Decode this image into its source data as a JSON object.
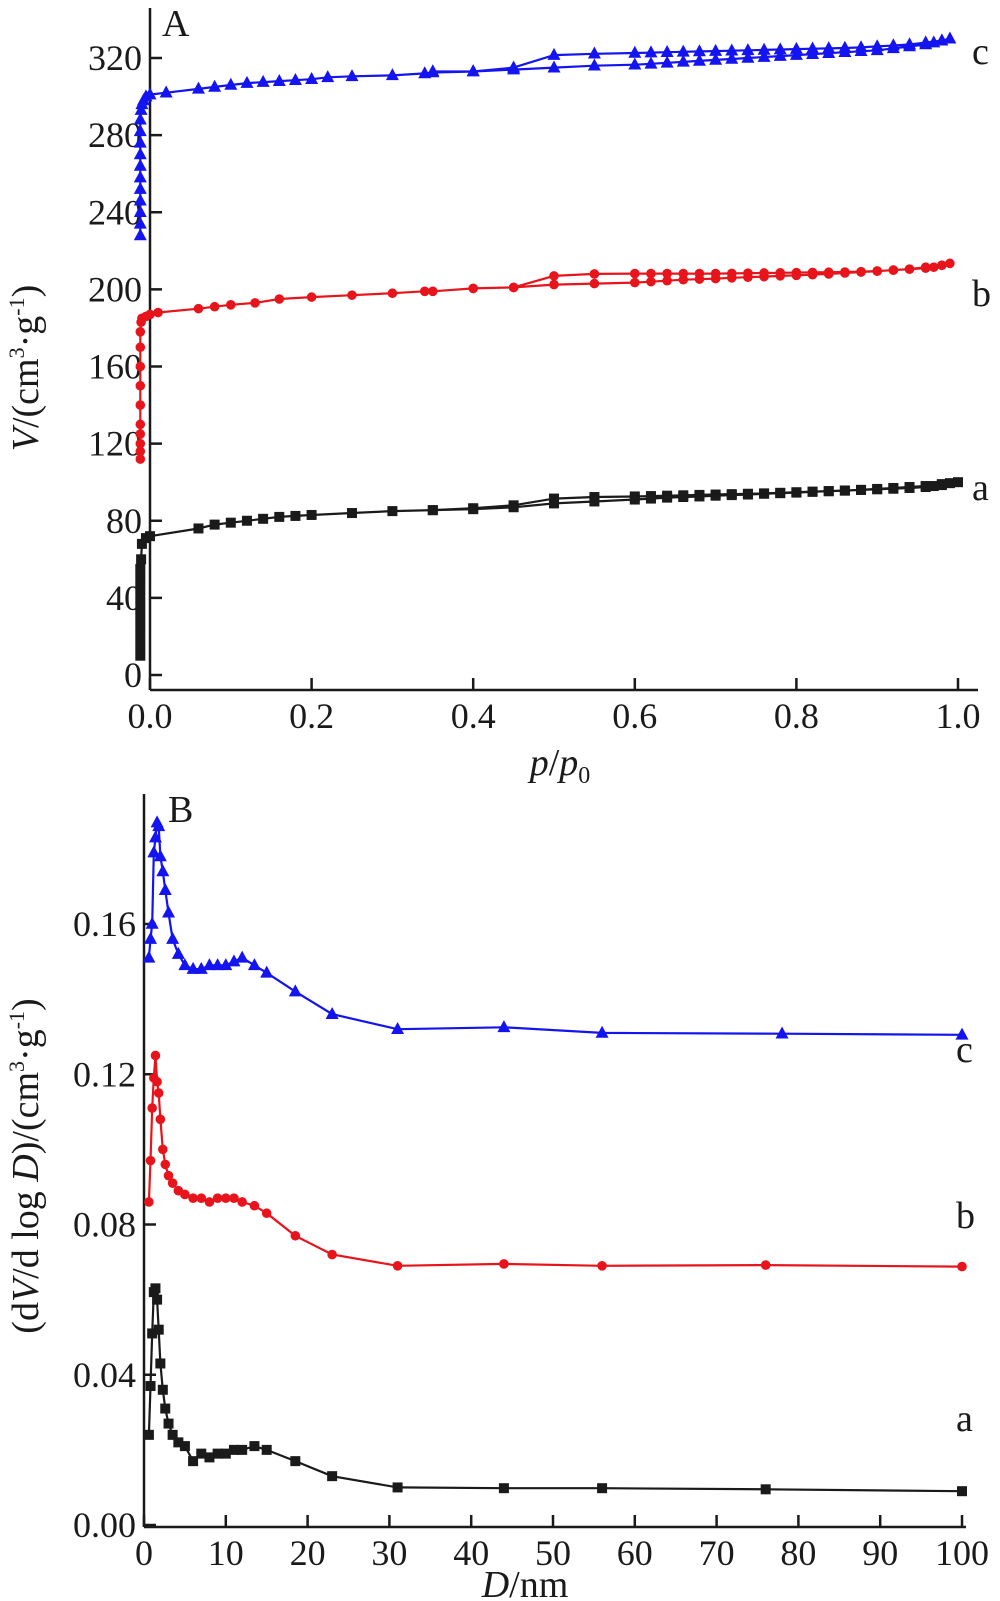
{
  "chart_data": [
    {
      "panel": "A",
      "type": "line",
      "xlabel_parts": [
        "p",
        "/",
        "p",
        "0"
      ],
      "ylabel_parts": [
        "V",
        "/(cm",
        "3",
        "·g",
        "-1",
        ")"
      ],
      "xlim": [
        -0.02,
        1.0
      ],
      "ylim": [
        0,
        330
      ],
      "xticks": [
        0.0,
        0.2,
        0.4,
        0.6,
        0.8,
        1.0
      ],
      "xtick_labels": [
        "0.0",
        "0.2",
        "0.4",
        "0.6",
        "0.8",
        "1.0"
      ],
      "yticks": [
        0,
        40,
        80,
        120,
        160,
        200,
        240,
        280,
        320
      ],
      "ytick_labels": [
        "0",
        "40",
        "80",
        "120",
        "160",
        "200",
        "240",
        "280",
        "320"
      ],
      "series": [
        {
          "label": "a",
          "color": "#1a1a1a",
          "marker": "square",
          "x": [
            -0.012,
            -0.012,
            -0.012,
            -0.012,
            -0.012,
            -0.012,
            -0.012,
            -0.012,
            -0.012,
            -0.012,
            -0.011,
            -0.01,
            -0.005,
            0.0,
            0.06,
            0.08,
            0.1,
            0.12,
            0.14,
            0.16,
            0.18,
            0.2,
            0.25,
            0.3,
            0.35,
            0.4,
            0.45,
            0.5,
            0.55,
            0.6,
            0.62,
            0.64,
            0.66,
            0.68,
            0.7,
            0.72,
            0.74,
            0.76,
            0.78,
            0.8,
            0.82,
            0.84,
            0.86,
            0.88,
            0.9,
            0.92,
            0.94,
            0.96,
            0.97,
            0.98,
            0.99,
            1.0,
            0.98,
            0.96,
            0.94,
            0.92,
            0.9,
            0.88,
            0.86,
            0.84,
            0.82,
            0.8,
            0.78,
            0.76,
            0.74,
            0.72,
            0.7,
            0.68,
            0.66,
            0.64,
            0.62,
            0.6,
            0.55,
            0.5,
            0.45,
            0.4,
            0.35
          ],
          "y": [
            10,
            15,
            20,
            25,
            30,
            35,
            40,
            45,
            50,
            55,
            60,
            68,
            71,
            72,
            76,
            78,
            79,
            80,
            81,
            82,
            82.5,
            83,
            84,
            85,
            85.5,
            86,
            87,
            89,
            90,
            91,
            91.5,
            92,
            92.3,
            92.6,
            93,
            93.3,
            93.6,
            94,
            94.3,
            94.6,
            95,
            95.3,
            95.6,
            96,
            96.3,
            96.6,
            97,
            97.5,
            98,
            98.5,
            99.5,
            100,
            99,
            98,
            97.5,
            97,
            96.5,
            96,
            95.7,
            95.4,
            95.1,
            94.8,
            94.5,
            94.2,
            94,
            93.8,
            93.6,
            93.4,
            93.2,
            93,
            92.8,
            92.6,
            92.3,
            91.5,
            88,
            86.5,
            85.5
          ]
        },
        {
          "label": "b",
          "color": "#e8141b",
          "marker": "circle",
          "x": [
            -0.012,
            -0.012,
            -0.012,
            -0.012,
            -0.012,
            -0.012,
            -0.012,
            -0.012,
            -0.012,
            -0.012,
            -0.011,
            -0.01,
            -0.005,
            0.0,
            0.01,
            0.06,
            0.08,
            0.1,
            0.13,
            0.16,
            0.2,
            0.25,
            0.3,
            0.34,
            0.35,
            0.4,
            0.45,
            0.5,
            0.55,
            0.6,
            0.62,
            0.64,
            0.66,
            0.68,
            0.7,
            0.72,
            0.74,
            0.76,
            0.78,
            0.8,
            0.82,
            0.84,
            0.86,
            0.88,
            0.9,
            0.92,
            0.94,
            0.96,
            0.97,
            0.98,
            0.99,
            0.98,
            0.96,
            0.94,
            0.92,
            0.9,
            0.88,
            0.86,
            0.84,
            0.82,
            0.8,
            0.78,
            0.76,
            0.74,
            0.72,
            0.7,
            0.68,
            0.66,
            0.64,
            0.62,
            0.6,
            0.55,
            0.5,
            0.45,
            0.4
          ],
          "y": [
            112,
            116,
            120,
            125,
            130,
            140,
            150,
            160,
            170,
            178,
            183,
            185,
            186,
            187,
            188,
            190,
            191,
            192,
            193,
            195,
            196,
            197,
            198,
            199,
            199,
            200.5,
            201,
            202.5,
            203,
            203.5,
            204,
            204.5,
            205,
            205.3,
            205.6,
            206,
            206.3,
            206.6,
            207,
            207.3,
            207.6,
            208,
            208.5,
            209,
            209.5,
            210,
            210.5,
            211,
            211.5,
            212.5,
            213.5,
            212.5,
            211.5,
            210.5,
            210,
            209.5,
            209.2,
            209,
            208.9,
            208.8,
            208.7,
            208.6,
            208.5,
            208.4,
            208.3,
            208.2,
            208.2,
            208.2,
            208.2,
            208.2,
            208.2,
            208,
            207,
            201,
            200.5
          ]
        },
        {
          "label": "c",
          "color": "#1414f0",
          "marker": "triangle",
          "x": [
            -0.012,
            -0.012,
            -0.012,
            -0.012,
            -0.012,
            -0.012,
            -0.012,
            -0.012,
            -0.012,
            -0.012,
            -0.012,
            -0.011,
            -0.01,
            -0.008,
            -0.005,
            0.0,
            0.02,
            0.06,
            0.08,
            0.1,
            0.12,
            0.14,
            0.16,
            0.18,
            0.2,
            0.22,
            0.25,
            0.3,
            0.34,
            0.35,
            0.4,
            0.45,
            0.5,
            0.55,
            0.6,
            0.62,
            0.64,
            0.66,
            0.68,
            0.7,
            0.72,
            0.74,
            0.76,
            0.78,
            0.8,
            0.82,
            0.84,
            0.86,
            0.88,
            0.9,
            0.92,
            0.94,
            0.96,
            0.97,
            0.98,
            0.99,
            0.98,
            0.96,
            0.94,
            0.92,
            0.9,
            0.88,
            0.86,
            0.84,
            0.82,
            0.8,
            0.78,
            0.76,
            0.74,
            0.72,
            0.7,
            0.68,
            0.66,
            0.64,
            0.62,
            0.6,
            0.55,
            0.5,
            0.45,
            0.4,
            0.35
          ],
          "y": [
            228,
            234,
            240,
            246,
            252,
            258,
            264,
            270,
            276,
            282,
            288,
            293,
            296,
            298,
            300,
            301,
            302,
            304,
            305,
            306,
            307,
            307.5,
            308,
            308.5,
            309,
            310,
            310.5,
            311,
            312,
            312.5,
            313,
            314,
            315,
            316,
            316.5,
            317,
            317.5,
            318,
            318.5,
            319,
            319.5,
            320,
            320.5,
            321,
            321.5,
            322,
            322.5,
            323,
            323.5,
            324,
            325,
            326,
            327,
            328,
            329,
            330,
            329,
            328,
            327,
            326.5,
            326,
            325.5,
            325.2,
            325,
            324.8,
            324.6,
            324.4,
            324.2,
            324,
            323.8,
            323.6,
            323.4,
            323.2,
            323,
            322.8,
            322.6,
            322.2,
            321.5,
            315,
            313,
            313
          ]
        }
      ]
    },
    {
      "panel": "B",
      "type": "line",
      "xlabel_parts": [
        "D",
        "/nm"
      ],
      "ylabel_parts": [
        "(d",
        "V",
        "/d log ",
        "D",
        ")/(cm",
        "3",
        "·g",
        "-1",
        ")"
      ],
      "xlim": [
        0,
        100
      ],
      "ylim": [
        0,
        0.19
      ],
      "xticks": [
        0,
        10,
        20,
        30,
        40,
        50,
        60,
        70,
        80,
        90,
        100
      ],
      "xtick_labels": [
        "0",
        "10",
        "20",
        "30",
        "40",
        "50",
        "60",
        "70",
        "80",
        "90",
        "100"
      ],
      "yticks": [
        0.0,
        0.04,
        0.08,
        0.12,
        0.16
      ],
      "ytick_labels": [
        "0.00",
        "0.04",
        "0.08",
        "0.12",
        "0.16"
      ],
      "series": [
        {
          "label": "a",
          "color": "#1a1a1a",
          "marker": "square",
          "x": [
            0.6,
            0.8,
            1.0,
            1.2,
            1.4,
            1.6,
            1.8,
            2.0,
            2.3,
            2.6,
            3.0,
            3.5,
            4.2,
            5.0,
            6.0,
            7.0,
            8.0,
            9.0,
            10.0,
            11.0,
            12.0,
            13.5,
            15.0,
            18.5,
            23.0,
            31.0,
            44.0,
            56.0,
            76.0,
            100.0
          ],
          "y": [
            0.024,
            0.037,
            0.051,
            0.062,
            0.063,
            0.06,
            0.052,
            0.043,
            0.036,
            0.031,
            0.027,
            0.024,
            0.022,
            0.021,
            0.017,
            0.019,
            0.018,
            0.019,
            0.019,
            0.02,
            0.02,
            0.021,
            0.02,
            0.017,
            0.013,
            0.01,
            0.0098,
            0.0098,
            0.0095,
            0.009
          ]
        },
        {
          "label": "b",
          "color": "#e8141b",
          "marker": "circle",
          "x": [
            0.6,
            0.8,
            1.0,
            1.2,
            1.4,
            1.6,
            1.8,
            2.0,
            2.3,
            2.6,
            3.0,
            3.5,
            4.2,
            5.0,
            6.0,
            7.0,
            8.0,
            9.0,
            10.0,
            11.0,
            12.0,
            13.5,
            15.0,
            18.5,
            23.0,
            31.0,
            44.0,
            56.0,
            76.0,
            100.0
          ],
          "y": [
            0.086,
            0.097,
            0.111,
            0.119,
            0.125,
            0.118,
            0.115,
            0.108,
            0.1,
            0.096,
            0.093,
            0.091,
            0.089,
            0.088,
            0.087,
            0.087,
            0.086,
            0.087,
            0.087,
            0.087,
            0.086,
            0.085,
            0.083,
            0.077,
            0.072,
            0.069,
            0.0695,
            0.069,
            0.0692,
            0.0688
          ]
        },
        {
          "label": "c",
          "color": "#1414f0",
          "marker": "triangle",
          "x": [
            0.6,
            0.8,
            1.0,
            1.2,
            1.4,
            1.6,
            1.8,
            2.0,
            2.3,
            2.6,
            3.0,
            3.5,
            4.2,
            5.0,
            6.0,
            7.0,
            8.0,
            9.0,
            10.0,
            11.0,
            12.0,
            13.5,
            15.0,
            18.5,
            23.0,
            31.0,
            44.0,
            56.0,
            78.0,
            100.0
          ],
          "y": [
            0.151,
            0.156,
            0.16,
            0.179,
            0.183,
            0.187,
            0.186,
            0.178,
            0.174,
            0.169,
            0.163,
            0.156,
            0.152,
            0.149,
            0.148,
            0.148,
            0.149,
            0.149,
            0.149,
            0.15,
            0.151,
            0.149,
            0.147,
            0.142,
            0.136,
            0.132,
            0.1325,
            0.131,
            0.1308,
            0.1305
          ]
        }
      ]
    }
  ]
}
